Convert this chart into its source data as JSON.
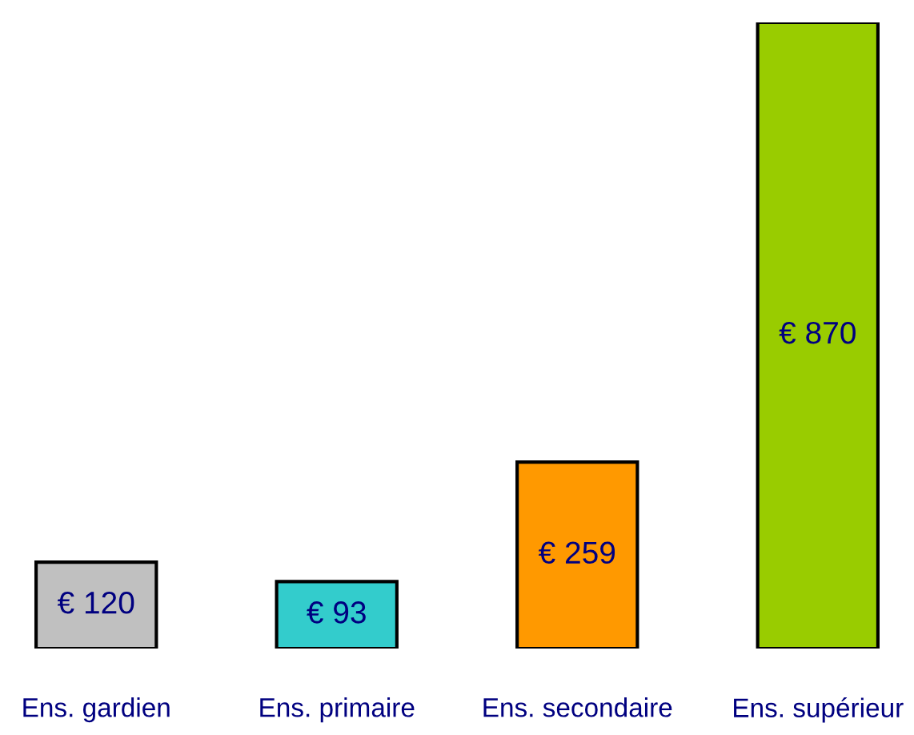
{
  "chart_data": {
    "type": "bar",
    "categories": [
      "Ens. gardien",
      "Ens. primaire",
      "Ens. secondaire",
      "Ens. supérieur"
    ],
    "values": [
      120,
      93,
      259,
      870
    ],
    "colors": [
      "#c0c0c0",
      "#33cccc",
      "#ff9900",
      "#99cc00"
    ],
    "value_labels": [
      "€ 120",
      "€ 93",
      "€ 259",
      "€ 870"
    ]
  }
}
